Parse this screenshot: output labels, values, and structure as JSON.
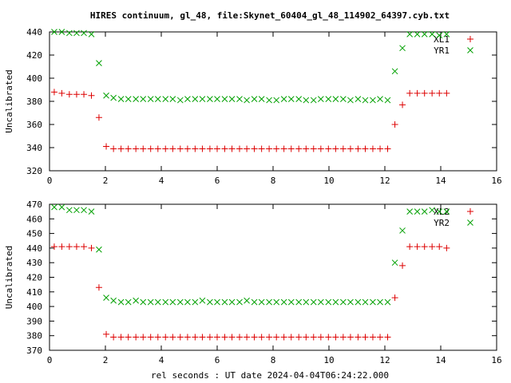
{
  "title": "HIRES continuum, gl_48, file:Skynet_60404_gl_48_114902_64397.cyb.txt",
  "chart_data": [
    {
      "type": "scatter",
      "ylabel": "Uncalibrated",
      "xlim": [
        0,
        16
      ],
      "ylim": [
        320,
        440
      ],
      "xticks": [
        0,
        2,
        4,
        6,
        8,
        10,
        12,
        14,
        16
      ],
      "yticks": [
        320,
        340,
        360,
        380,
        400,
        420,
        440
      ],
      "legend_position": "top-right",
      "series": [
        {
          "name": "XL1",
          "color": "#dd0000",
          "marker": "plus",
          "x": [
            0.17,
            0.44,
            0.71,
            0.97,
            1.23,
            1.5,
            1.77,
            2.03,
            2.29,
            2.56,
            2.82,
            3.09,
            3.35,
            3.62,
            3.88,
            4.15,
            4.41,
            4.68,
            4.94,
            5.21,
            5.47,
            5.74,
            6.0,
            6.27,
            6.53,
            6.8,
            7.06,
            7.33,
            7.59,
            7.86,
            8.12,
            8.39,
            8.65,
            8.92,
            9.18,
            9.45,
            9.71,
            9.98,
            10.24,
            10.51,
            10.77,
            11.04,
            11.3,
            11.57,
            11.83,
            12.1,
            12.36,
            12.63,
            12.89,
            13.16,
            13.42,
            13.69,
            13.95,
            14.21
          ],
          "y": [
            388,
            387,
            386,
            386,
            386,
            385,
            366,
            341,
            339,
            339,
            339,
            339,
            339,
            339,
            339,
            339,
            339,
            339,
            339,
            339,
            339,
            339,
            339,
            339,
            339,
            339,
            339,
            339,
            339,
            339,
            339,
            339,
            339,
            339,
            339,
            339,
            339,
            339,
            339,
            339,
            339,
            339,
            339,
            339,
            339,
            339,
            360,
            377,
            387,
            387,
            387,
            387,
            387,
            387
          ]
        },
        {
          "name": "YR1",
          "color": "#00a000",
          "marker": "cross",
          "x": [
            0.17,
            0.44,
            0.71,
            0.97,
            1.23,
            1.5,
            1.77,
            2.03,
            2.29,
            2.56,
            2.82,
            3.09,
            3.35,
            3.62,
            3.88,
            4.15,
            4.41,
            4.68,
            4.94,
            5.21,
            5.47,
            5.74,
            6.0,
            6.27,
            6.53,
            6.8,
            7.06,
            7.33,
            7.59,
            7.86,
            8.12,
            8.39,
            8.65,
            8.92,
            9.18,
            9.45,
            9.71,
            9.98,
            10.24,
            10.51,
            10.77,
            11.04,
            11.3,
            11.57,
            11.83,
            12.1,
            12.36,
            12.63,
            12.89,
            13.16,
            13.42,
            13.69,
            13.95,
            14.21
          ],
          "y": [
            440,
            440,
            439,
            439,
            439,
            438,
            413,
            385,
            383,
            382,
            382,
            382,
            382,
            382,
            382,
            382,
            382,
            381,
            382,
            382,
            382,
            382,
            382,
            382,
            382,
            382,
            381,
            382,
            382,
            381,
            381,
            382,
            382,
            382,
            381,
            381,
            382,
            382,
            382,
            382,
            381,
            382,
            381,
            381,
            382,
            381,
            406,
            426,
            438,
            438,
            438,
            438,
            437,
            438
          ]
        }
      ]
    },
    {
      "type": "scatter",
      "ylabel": "Uncalibrated",
      "xlabel": "rel seconds : UT date 2024-04-04T06:24:22.000",
      "xlim": [
        0,
        16
      ],
      "ylim": [
        370,
        470
      ],
      "xticks": [
        0,
        2,
        4,
        6,
        8,
        10,
        12,
        14,
        16
      ],
      "yticks": [
        370,
        380,
        390,
        400,
        410,
        420,
        430,
        440,
        450,
        460,
        470
      ],
      "legend_position": "top-right",
      "series": [
        {
          "name": "XL2",
          "color": "#dd0000",
          "marker": "plus",
          "x": [
            0.17,
            0.44,
            0.71,
            0.97,
            1.23,
            1.5,
            1.77,
            2.03,
            2.29,
            2.56,
            2.82,
            3.09,
            3.35,
            3.62,
            3.88,
            4.15,
            4.41,
            4.68,
            4.94,
            5.21,
            5.47,
            5.74,
            6.0,
            6.27,
            6.53,
            6.8,
            7.06,
            7.33,
            7.59,
            7.86,
            8.12,
            8.39,
            8.65,
            8.92,
            9.18,
            9.45,
            9.71,
            9.98,
            10.24,
            10.51,
            10.77,
            11.04,
            11.3,
            11.57,
            11.83,
            12.1,
            12.36,
            12.63,
            12.89,
            13.16,
            13.42,
            13.69,
            13.95,
            14.21
          ],
          "y": [
            441,
            441,
            441,
            441,
            441,
            440,
            413,
            381,
            379,
            379,
            379,
            379,
            379,
            379,
            379,
            379,
            379,
            379,
            379,
            379,
            379,
            379,
            379,
            379,
            379,
            379,
            379,
            379,
            379,
            379,
            379,
            379,
            379,
            379,
            379,
            379,
            379,
            379,
            379,
            379,
            379,
            379,
            379,
            379,
            379,
            379,
            406,
            428,
            441,
            441,
            441,
            441,
            441,
            440
          ]
        },
        {
          "name": "YR2",
          "color": "#00a000",
          "marker": "cross",
          "x": [
            0.17,
            0.44,
            0.71,
            0.97,
            1.23,
            1.5,
            1.77,
            2.03,
            2.29,
            2.56,
            2.82,
            3.09,
            3.35,
            3.62,
            3.88,
            4.15,
            4.41,
            4.68,
            4.94,
            5.21,
            5.47,
            5.74,
            6.0,
            6.27,
            6.53,
            6.8,
            7.06,
            7.33,
            7.59,
            7.86,
            8.12,
            8.39,
            8.65,
            8.92,
            9.18,
            9.45,
            9.71,
            9.98,
            10.24,
            10.51,
            10.77,
            11.04,
            11.3,
            11.57,
            11.83,
            12.1,
            12.36,
            12.63,
            12.89,
            13.16,
            13.42,
            13.69,
            13.95,
            14.21
          ],
          "y": [
            468,
            468,
            466,
            466,
            466,
            465,
            439,
            406,
            404,
            403,
            403,
            404,
            403,
            403,
            403,
            403,
            403,
            403,
            403,
            403,
            404,
            403,
            403,
            403,
            403,
            403,
            404,
            403,
            403,
            403,
            403,
            403,
            403,
            403,
            403,
            403,
            403,
            403,
            403,
            403,
            403,
            403,
            403,
            403,
            403,
            403,
            430,
            452,
            465,
            465,
            465,
            466,
            465,
            465
          ]
        }
      ]
    }
  ]
}
